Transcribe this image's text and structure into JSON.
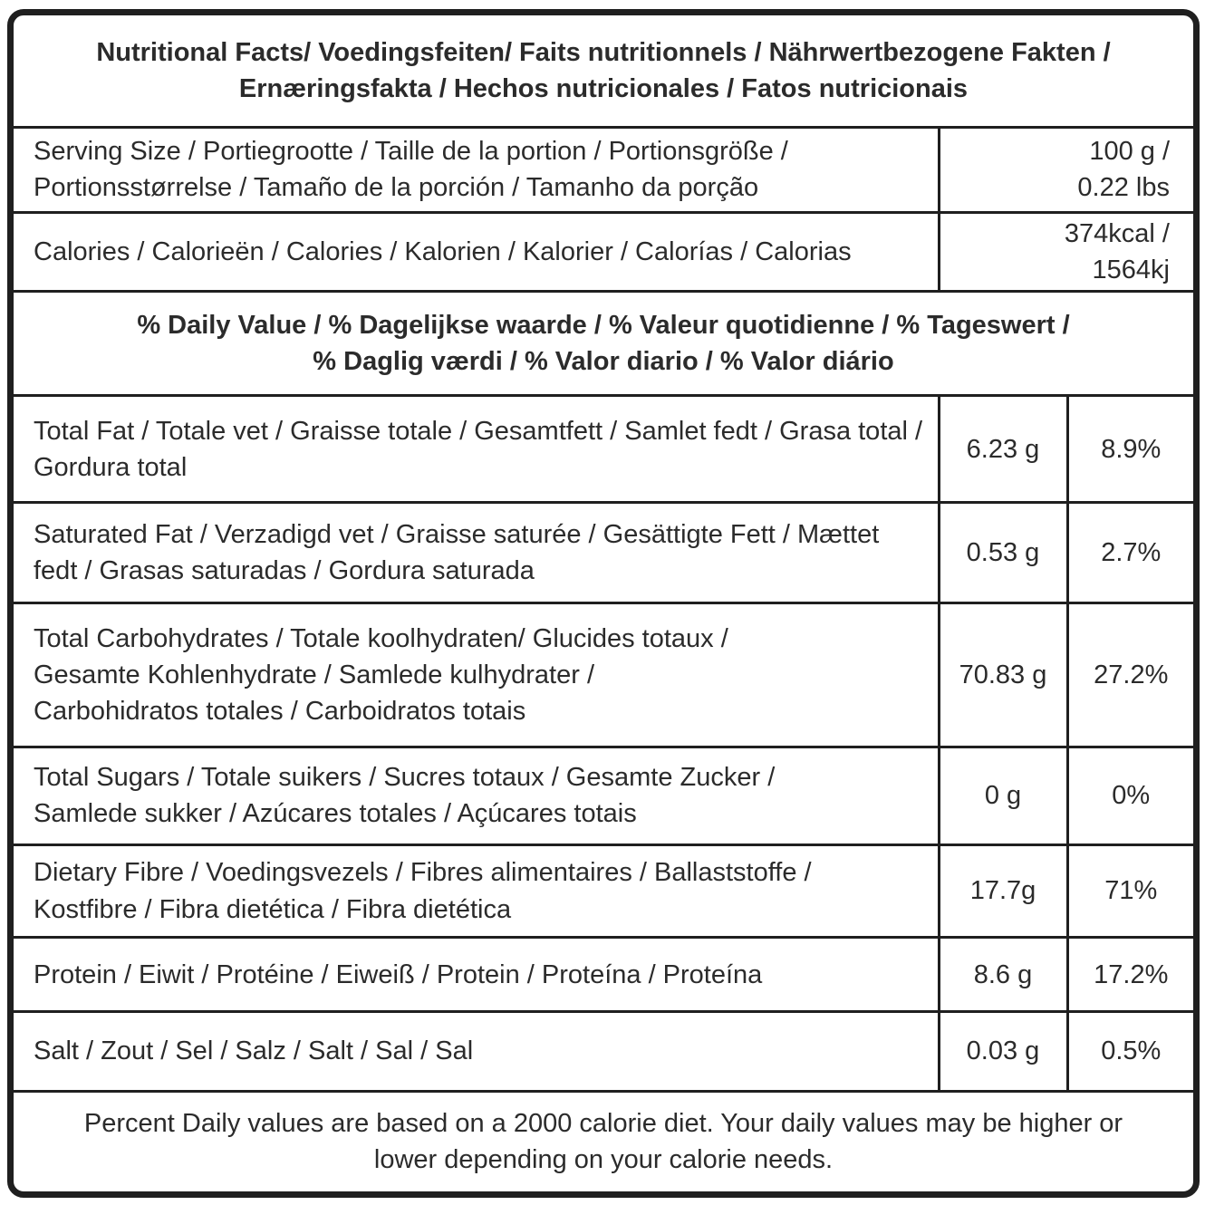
{
  "table": {
    "title": "Nutritional Facts/ Voedingsfeiten/ Faits nutritionnels / Nährwertbezogene Fakten /\nErnæringsfakta / Hechos nutricionales / Fatos nutricionais",
    "serving": {
      "label": "Serving Size / Portiegrootte / Taille de la portion / Portionsgröße / Portionsstørrelse / Tamaño de la porción / Tamanho da porção",
      "value": "100 g /\n0.22 lbs"
    },
    "calories": {
      "label": "Calories / Calorieën / Calories / Kalorien / Kalorier / Calorías / Calorias",
      "value": "374kcal /\n1564kj"
    },
    "daily_value_header": "% Daily Value / % Dagelijkse waarde / % Valeur quotidienne / % Tageswert /\n% Daglig værdi / % Valor diario / % Valor diário",
    "nutrients": [
      {
        "label": "Total Fat / Totale vet / Graisse totale / Gesamtfett / Samlet fedt / Grasa total / Gordura total",
        "amount": "6.23 g",
        "percent": "8.9%"
      },
      {
        "label": "Saturated Fat / Verzadigd vet / Graisse saturée / Gesättigte Fett / Mættet fedt / Grasas saturadas / Gordura saturada",
        "amount": "0.53 g",
        "percent": "2.7%"
      },
      {
        "label": "Total Carbohydrates / Totale koolhydraten/ Glucides totaux /\nGesamte Kohlenhydrate / Samlede kulhydrater /\nCarbohidratos totales / Carboidratos totais",
        "amount": "70.83 g",
        "percent": "27.2%"
      },
      {
        "label": "Total Sugars / Totale suikers / Sucres totaux / Gesamte Zucker /\nSamlede sukker / Azúcares totales / Açúcares totais",
        "amount": "0 g",
        "percent": "0%"
      },
      {
        "label": "Dietary Fibre / Voedingsvezels / Fibres alimentaires / Ballaststoffe /\nKostfibre / Fibra dietética / Fibra dietética",
        "amount": "17.7g",
        "percent": "71%"
      },
      {
        "label": "Protein / Eiwit / Protéine / Eiweiß / Protein / Proteína / Proteína",
        "amount": "8.6 g",
        "percent": "17.2%"
      },
      {
        "label": "Salt / Zout / Sel / Salz / Salt / Sal / Sal",
        "amount": "0.03 g",
        "percent": "0.5%"
      }
    ],
    "footnote": "Percent Daily values are based on a 2000 calorie diet. Your daily values may be higher or\nlower depending on your calorie needs.",
    "colors": {
      "border": "#1f1f1f",
      "text": "#2b2b2b",
      "background": "#ffffff"
    }
  }
}
